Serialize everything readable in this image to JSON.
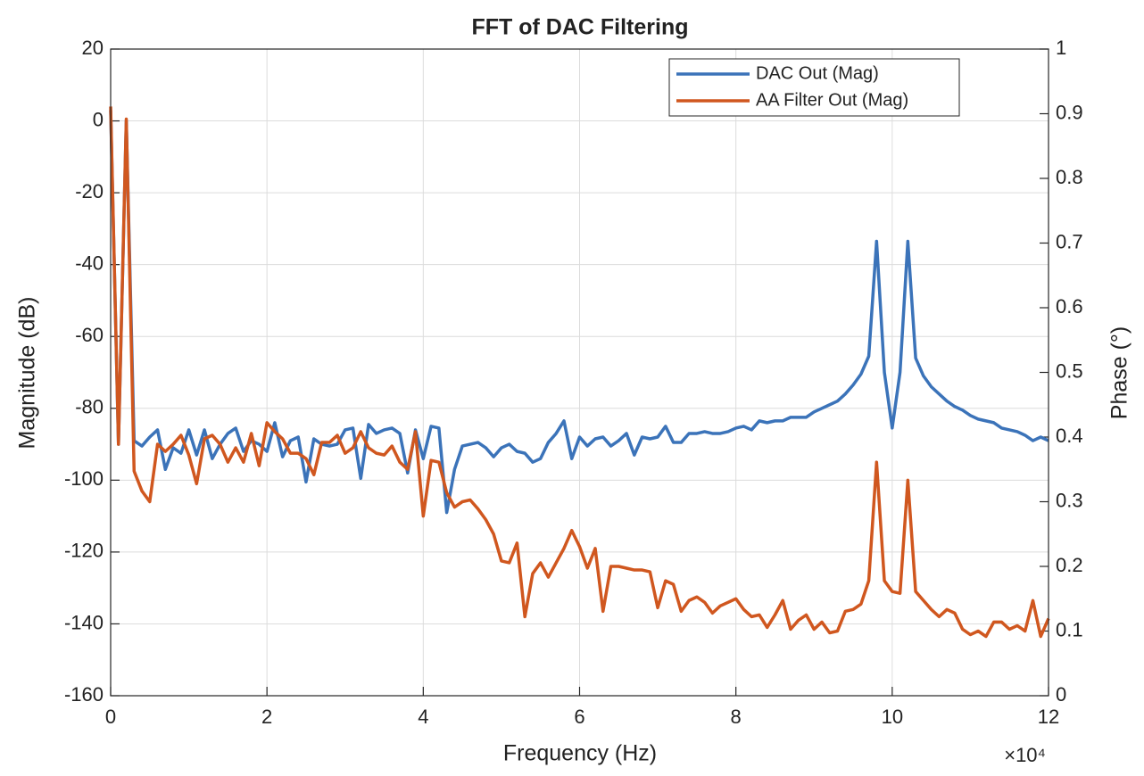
{
  "chart_data": {
    "type": "line",
    "title": "FFT of DAC Filtering",
    "xlabel": "Frequency (Hz)",
    "ylabel": "Magnitude (dB)",
    "y2label": "Phase (°)",
    "x_exponent": "×10⁴",
    "x": [
      0,
      1000,
      2000,
      3000,
      4000,
      5000,
      6000,
      7000,
      8000,
      9000,
      10000,
      11000,
      12000,
      13000,
      14000,
      15000,
      16000,
      17000,
      18000,
      19000,
      20000,
      21000,
      22000,
      23000,
      24000,
      25000,
      26000,
      27000,
      28000,
      29000,
      30000,
      31000,
      32000,
      33000,
      34000,
      35000,
      36000,
      37000,
      38000,
      39000,
      40000,
      41000,
      42000,
      43000,
      44000,
      45000,
      46000,
      47000,
      48000,
      49000,
      50000,
      51000,
      52000,
      53000,
      54000,
      55000,
      56000,
      57000,
      58000,
      59000,
      60000,
      61000,
      62000,
      63000,
      64000,
      65000,
      66000,
      67000,
      68000,
      69000,
      70000,
      71000,
      72000,
      73000,
      74000,
      75000,
      76000,
      77000,
      78000,
      79000,
      80000,
      81000,
      82000,
      83000,
      84000,
      85000,
      86000,
      87000,
      88000,
      89000,
      90000,
      91000,
      92000,
      93000,
      94000,
      95000,
      96000,
      97000,
      98000,
      99000,
      100000,
      101000,
      102000,
      103000,
      104000,
      105000,
      106000,
      107000,
      108000,
      109000,
      110000,
      111000,
      112000,
      113000,
      114000,
      115000,
      116000,
      117000,
      118000,
      119000,
      120000
    ],
    "series": [
      {
        "name": "DAC Out (Mag)",
        "color": "#3b73b9",
        "values": [
          3,
          -90,
          0,
          -89,
          -90.5,
          -88,
          -86,
          -97,
          -91,
          -92.5,
          -86,
          -93,
          -86,
          -94,
          -90,
          -87,
          -85.5,
          -92,
          -89,
          -90,
          -92,
          -84,
          -93.5,
          -89,
          -88,
          -100.5,
          -88.5,
          -90,
          -90.5,
          -90,
          -86,
          -85.5,
          -99.5,
          -84.5,
          -87,
          -86,
          -85.5,
          -87,
          -98,
          -86,
          -94,
          -85,
          -85.5,
          -109,
          -97,
          -90.5,
          -90,
          -89.5,
          -91,
          -93.5,
          -91,
          -90,
          -92,
          -92.5,
          -95,
          -94,
          -89.5,
          -87,
          -83.5,
          -94,
          -88,
          -90.5,
          -88.5,
          -88,
          -90.5,
          -89,
          -87,
          -93,
          -88,
          -88.5,
          -88,
          -85,
          -89.5,
          -89.5,
          -87,
          -87,
          -86.5,
          -87,
          -87,
          -86.5,
          -85.5,
          -85,
          -86,
          -83.5,
          -84,
          -83.5,
          -83.5,
          -82.5,
          -82.5,
          -82.5,
          -81,
          -80,
          -79,
          -78,
          -76,
          -73.5,
          -70.5,
          -65.5,
          -33.5,
          -70,
          -85.5,
          -70,
          -33.5,
          -66,
          -71,
          -74,
          -76,
          -78,
          -79.5,
          -80.5,
          -82,
          -83,
          -83.5,
          -84,
          -85.5,
          -86,
          -86.5,
          -87.5,
          -89,
          -88,
          -89
        ]
      },
      {
        "name": "AA Filter Out (Mag)",
        "color": "#d0571f",
        "values": [
          4,
          -90,
          0.5,
          -97.5,
          -103,
          -106,
          -90,
          -92,
          -90,
          -87.5,
          -93,
          -101,
          -88.5,
          -87.5,
          -90,
          -95,
          -91,
          -95,
          -87,
          -96,
          -84,
          -86.5,
          -88.5,
          -92.5,
          -92.5,
          -94,
          -98.5,
          -89.5,
          -89.5,
          -87.5,
          -92.5,
          -91,
          -86.5,
          -91,
          -92.5,
          -93,
          -90.5,
          -95,
          -97,
          -86.5,
          -110,
          -94.5,
          -95,
          -103.5,
          -107.5,
          -106,
          -105.5,
          -108,
          -111,
          -115,
          -122.5,
          -123,
          -117.5,
          -138,
          -126,
          -123,
          -127,
          -123,
          -119,
          -114,
          -118.5,
          -124.5,
          -119,
          -136.5,
          -124,
          -124,
          -124.5,
          -125,
          -125,
          -125.5,
          -135.5,
          -128,
          -129,
          -136.5,
          -133.5,
          -132.5,
          -134,
          -137,
          -135,
          -134,
          -133,
          -136,
          -138,
          -137.5,
          -141,
          -137.5,
          -133.5,
          -141.5,
          -139,
          -137.5,
          -141.5,
          -139.5,
          -142.5,
          -142,
          -136.5,
          -136,
          -134.5,
          -128,
          -95,
          -128,
          -131,
          -131.5,
          -100,
          -131,
          -133.5,
          -136,
          -138,
          -136,
          -137,
          -141.5,
          -143,
          -142,
          -143.5,
          -139.5,
          -139.5,
          -141.5,
          -140.5,
          -142,
          -133.5,
          -143.5,
          -138.5
        ]
      }
    ],
    "xlim": [
      0,
      120000
    ],
    "xticks": [
      {
        "value": 0,
        "label": "0"
      },
      {
        "value": 20000,
        "label": "2"
      },
      {
        "value": 40000,
        "label": "4"
      },
      {
        "value": 60000,
        "label": "6"
      },
      {
        "value": 80000,
        "label": "8"
      },
      {
        "value": 100000,
        "label": "10"
      },
      {
        "value": 120000,
        "label": "12"
      }
    ],
    "ylim": [
      -160,
      20
    ],
    "yticks": [
      -160,
      -140,
      -120,
      -100,
      -80,
      -60,
      -40,
      -20,
      0,
      20
    ],
    "y2lim": [
      0,
      1
    ],
    "y2ticks": [
      0,
      0.1,
      0.2,
      0.3,
      0.4,
      0.5,
      0.6,
      0.7,
      0.8,
      0.9,
      1
    ],
    "grid": true,
    "legend": "northeast"
  }
}
